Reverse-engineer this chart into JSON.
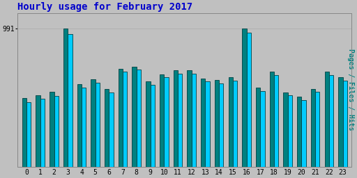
{
  "title": "Hourly usage for February 2017",
  "title_color": "#0000cc",
  "title_fontsize": 10,
  "background_color": "#c0c0c0",
  "plot_bg_color": "#c0c0c0",
  "hours": [
    0,
    1,
    2,
    3,
    4,
    5,
    6,
    7,
    8,
    9,
    10,
    11,
    12,
    13,
    14,
    15,
    16,
    17,
    18,
    19,
    20,
    21,
    22,
    23
  ],
  "pages_values": [
    490,
    510,
    535,
    991,
    590,
    625,
    555,
    700,
    715,
    610,
    660,
    690,
    690,
    630,
    620,
    640,
    991,
    565,
    680,
    530,
    500,
    555,
    680,
    640
  ],
  "hits_values": [
    460,
    485,
    505,
    950,
    565,
    600,
    530,
    680,
    695,
    585,
    640,
    665,
    665,
    610,
    598,
    618,
    960,
    540,
    655,
    510,
    478,
    535,
    655,
    618
  ],
  "pages_color": "#008080",
  "hits_color": "#00ccff",
  "bar_edge_color": "#004040",
  "ylabel_right": "Pages / Files / Hits",
  "ylabel_right_color": "#008080",
  "ytick_label": "991",
  "ytick_value": 991,
  "ylim_min": 0,
  "ylim_max": 1100,
  "bar_width": 0.32,
  "xlabel_fontsize": 7,
  "ylabel_fontsize": 7
}
